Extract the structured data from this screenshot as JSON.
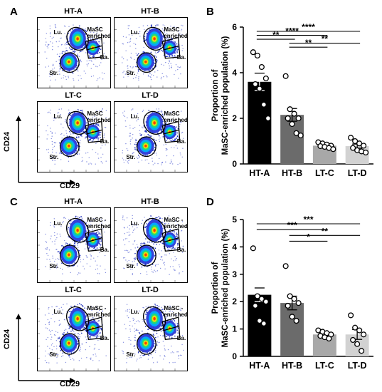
{
  "panels": {
    "A": {
      "letter": "A",
      "plots": [
        {
          "title": "HT-A",
          "labels": [
            "Lu.",
            "MaSC enriched",
            "Ba.",
            "Str."
          ]
        },
        {
          "title": "HT-B",
          "labels": [
            "Lu.",
            "MaSC enriched",
            "Ba.",
            "Str."
          ]
        },
        {
          "title": "LT-C",
          "labels": [
            "Lu.",
            "MaSC enriched",
            "Ba.",
            "Str."
          ]
        },
        {
          "title": "LT-D",
          "labels": [
            "Lu.",
            "MaSC enriched",
            "Ba.",
            "Str."
          ]
        }
      ],
      "y_axis": "CD24",
      "x_axis": "CD29"
    },
    "C": {
      "letter": "C",
      "plots": [
        {
          "title": "HT-A",
          "labels": [
            "Lu.",
            "MaSC -enriched",
            "Ba.",
            "Str."
          ]
        },
        {
          "title": "HT-B",
          "labels": [
            "Lu.",
            "MaSC -enriched",
            "Ba.",
            "Str."
          ]
        },
        {
          "title": "LT-C",
          "labels": [
            "Lu.",
            "MaSC -enriched",
            "Ba.",
            "Str."
          ]
        },
        {
          "title": "LT-D",
          "labels": [
            "Lu.",
            "MaSC -enriched",
            "Ba.",
            "Str."
          ]
        }
      ],
      "y_axis": "CD24",
      "x_axis": "CD29"
    },
    "B": {
      "letter": "B"
    },
    "D": {
      "letter": "D"
    }
  },
  "colors": {
    "HT-A": "#000000",
    "HT-B": "#6b6b6b",
    "LT-C": "#a8a8a8",
    "LT-D": "#d2d2d2"
  },
  "chart_data": [
    {
      "panel": "B",
      "type": "bar",
      "categories": [
        "HT-A",
        "HT-B",
        "LT-C",
        "LT-D"
      ],
      "values": [
        3.6,
        2.15,
        0.8,
        0.78
      ],
      "sem": [
        0.38,
        0.28,
        0.06,
        0.09
      ],
      "points": [
        [
          4.9,
          4.75,
          4.25,
          3.75,
          3.5,
          3.3,
          2.6,
          2.0
        ],
        [
          3.85,
          2.4,
          2.2,
          2.0,
          2.0,
          1.75,
          1.35,
          1.25
        ],
        [
          0.95,
          0.9,
          0.85,
          0.8,
          0.78,
          0.75,
          0.7,
          0.65
        ],
        [
          1.15,
          1.0,
          0.9,
          0.8,
          0.7,
          0.6,
          0.55,
          0.5
        ]
      ],
      "ylabel": "Proportion of MaSC-enriched population (%)",
      "ylim": [
        0,
        6
      ],
      "yticks": [
        0,
        2,
        4,
        6
      ],
      "significance": [
        {
          "from": 0,
          "to": 3,
          "label": "****"
        },
        {
          "from": 0,
          "to": 2,
          "label": "****"
        },
        {
          "from": 0,
          "to": 1,
          "label": "**"
        },
        {
          "from": 1,
          "to": 3,
          "label": "**"
        },
        {
          "from": 1,
          "to": 2,
          "label": "**"
        }
      ]
    },
    {
      "panel": "D",
      "type": "bar",
      "categories": [
        "HT-A",
        "HT-B",
        "LT-C",
        "LT-D"
      ],
      "values": [
        2.25,
        1.95,
        0.8,
        0.8
      ],
      "sem": [
        0.25,
        0.25,
        0.06,
        0.18
      ],
      "points": [
        [
          3.95,
          2.2,
          2.1,
          2.0,
          1.85,
          1.3,
          1.2
        ],
        [
          3.3,
          2.2,
          2.1,
          1.95,
          1.85,
          1.45,
          1.3
        ],
        [
          0.95,
          0.9,
          0.85,
          0.8,
          0.75,
          0.7,
          0.65
        ],
        [
          1.5,
          1.05,
          0.95,
          0.8,
          0.6,
          0.45,
          0.2
        ]
      ],
      "ylabel": "Proportion of MaSC-enriched population (%)",
      "ylim": [
        0,
        5
      ],
      "yticks": [
        0,
        1,
        2,
        3,
        4,
        5
      ],
      "significance": [
        {
          "from": 0,
          "to": 3,
          "label": "***"
        },
        {
          "from": 0,
          "to": 2,
          "label": "***"
        },
        {
          "from": 1,
          "to": 3,
          "label": "**"
        },
        {
          "from": 1,
          "to": 2,
          "label": "*"
        }
      ]
    }
  ]
}
